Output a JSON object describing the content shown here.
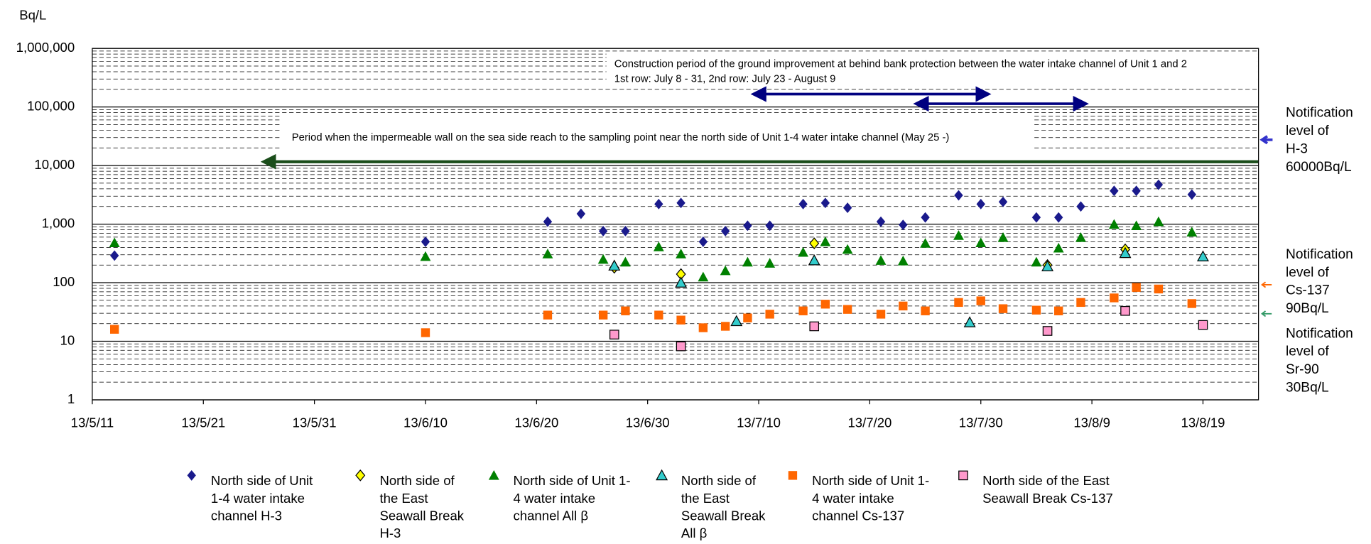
{
  "chart_data": {
    "type": "scatter",
    "y_label": "Bq/L",
    "log_y": true,
    "grid": true,
    "minor_grid": true,
    "xlim": [
      "13/5/11",
      "13/8/24"
    ],
    "xticks": [
      "13/5/11",
      "13/5/21",
      "13/5/31",
      "13/6/10",
      "13/6/20",
      "13/6/30",
      "13/7/10",
      "13/7/20",
      "13/7/30",
      "13/8/9",
      "13/8/19"
    ],
    "ylim": [
      1,
      1000000
    ],
    "yticks": [
      1,
      10,
      100,
      {
        "value": 1000,
        "label": "1,000"
      },
      {
        "value": 10000,
        "label": "10,000"
      },
      {
        "value": 100000,
        "label": "100,000"
      },
      {
        "value": 1000000,
        "label": "1,000,000"
      }
    ],
    "legend": "bottom",
    "annotations": [
      {
        "lines": [
          "Construction period of the ground improvement at behind bank protection between the water intake channel of Unit 1 and 2",
          "1st row: July 8 - 31, 2nd row: July 23 - August 9"
        ]
      },
      {
        "lines": [
          "Period when the impermeable wall on the sea side reach to the sampling point near the north side of Unit 1-4 water intake channel (May 25 -)"
        ]
      }
    ],
    "notes": [
      {
        "lines": [
          "Notification",
          "level of",
          "H-3",
          "60000Bq/L"
        ]
      },
      {
        "lines": [
          "Notification",
          "level of",
          "Cs-137",
          "90Bq/L"
        ]
      },
      {
        "lines": [
          "Notification",
          "level of",
          "Sr-90",
          "30Bq/L"
        ]
      }
    ],
    "series": [
      {
        "name": "North side of Unit 1-4 water intake channel H-3",
        "color": "#1a1a8c",
        "marker": "diamond",
        "x": [
          "13/5/13",
          "13/6/10",
          "13/6/21",
          "13/6/24",
          "13/6/26",
          "13/6/28",
          "13/7/1",
          "13/7/3",
          "13/7/5",
          "13/7/7",
          "13/7/9",
          "13/7/11",
          "13/7/14",
          "13/7/16",
          "13/7/18",
          "13/7/21",
          "13/7/23",
          "13/7/25",
          "13/7/28",
          "13/7/30",
          "13/8/1",
          "13/8/4",
          "13/8/6",
          "13/8/8",
          "13/8/11",
          "13/8/13",
          "13/8/15",
          "13/8/18"
        ],
        "values": [
          290,
          500,
          1100,
          1500,
          760,
          760,
          2200,
          2300,
          500,
          760,
          940,
          940,
          2200,
          2300,
          1900,
          1100,
          970,
          1300,
          3100,
          2200,
          2400,
          1300,
          1300,
          2000,
          3700,
          3700,
          4700,
          3200
        ]
      },
      {
        "name": "North side of the East Seawall Break H-3",
        "color": "#ffff00",
        "marker": "diamond",
        "x": [
          "13/6/27",
          "13/7/3",
          "13/7/15",
          "13/8/5",
          "13/8/12"
        ],
        "values": [
          180,
          140,
          470,
          200,
          370
        ]
      },
      {
        "name": "North side of Unit 1-4 water intake channel All β",
        "color": "#008000",
        "marker": "triangle",
        "x": [
          "13/5/13",
          "13/6/10",
          "13/6/21",
          "13/6/26",
          "13/6/28",
          "13/7/1",
          "13/7/3",
          "13/7/5",
          "13/7/7",
          "13/7/9",
          "13/7/11",
          "13/7/14",
          "13/7/16",
          "13/7/18",
          "13/7/21",
          "13/7/23",
          "13/7/25",
          "13/7/28",
          "13/7/30",
          "13/8/1",
          "13/8/4",
          "13/8/6",
          "13/8/8",
          "13/8/11",
          "13/8/13",
          "13/8/15",
          "13/8/18"
        ],
        "values": [
          480,
          280,
          310,
          250,
          225,
          410,
          310,
          125,
          160,
          225,
          215,
          330,
          500,
          370,
          240,
          235,
          470,
          640,
          480,
          590,
          225,
          390,
          590,
          990,
          940,
          1100,
          730
        ]
      },
      {
        "name": "North side of the East Seawall Break All β",
        "color": "#33cccc",
        "marker": "triangle",
        "x": [
          "13/6/27",
          "13/7/3",
          "13/7/8",
          "13/7/15",
          "13/7/29",
          "13/8/5",
          "13/8/12",
          "13/8/19"
        ],
        "values": [
          195,
          100,
          22,
          240,
          21,
          190,
          320,
          280
        ]
      },
      {
        "name": "North side of Unit 1-4 water intake channel Cs-137",
        "color": "#ff6600",
        "marker": "square",
        "x": [
          "13/5/13",
          "13/6/10",
          "13/6/21",
          "13/6/26",
          "13/6/28",
          "13/7/1",
          "13/7/3",
          "13/7/5",
          "13/7/7",
          "13/7/9",
          "13/7/11",
          "13/7/14",
          "13/7/16",
          "13/7/18",
          "13/7/21",
          "13/7/23",
          "13/7/25",
          "13/7/28",
          "13/7/30",
          "13/8/1",
          "13/8/4",
          "13/8/6",
          "13/8/8",
          "13/8/11",
          "13/8/13",
          "13/8/15",
          "13/8/18"
        ],
        "values": [
          16,
          14,
          28,
          28,
          33,
          28,
          23,
          17,
          18,
          25,
          29,
          33,
          43,
          35,
          29,
          40,
          33,
          46,
          49,
          36,
          34,
          33,
          46,
          55,
          83,
          78,
          44
        ]
      },
      {
        "name": "North side of the East Seawall Break Cs-137",
        "color": "#ff99cc",
        "marker": "square",
        "x": [
          "13/6/27",
          "13/7/3",
          "13/7/15",
          "13/8/5",
          "13/8/12",
          "13/8/19"
        ],
        "values": [
          13,
          8.2,
          18,
          15,
          33,
          19
        ]
      }
    ]
  }
}
